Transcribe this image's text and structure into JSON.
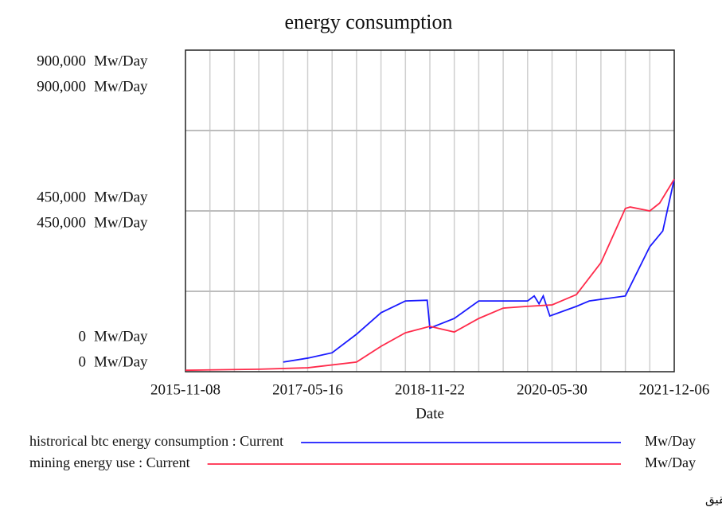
{
  "chart_data": {
    "type": "line",
    "title": "energy consumption",
    "x_label": "Date",
    "unit": "Mw/Day",
    "xlim": [
      "2015-11-08",
      "2021-12-06"
    ],
    "xticks": [
      "2015-11-08",
      "2017-05-16",
      "2018-11-22",
      "2020-05-30",
      "2021-12-06"
    ],
    "xgrid_count": 20,
    "ylim": [
      0,
      900000
    ],
    "yticks": [
      {
        "value": 0,
        "label": "0"
      },
      {
        "value": 450000,
        "label": "450,000"
      },
      {
        "value": 900000,
        "label": "900,000"
      }
    ],
    "y2lim": [
      0,
      900000
    ],
    "y2ticks": [
      {
        "value": 0,
        "label": "0"
      },
      {
        "value": 450000,
        "label": "450,000"
      },
      {
        "value": 900000,
        "label": "900,000"
      }
    ],
    "ygrid": [
      225000,
      450000,
      675000
    ],
    "series": [
      {
        "name": "histrorical btc energy consumption : Current",
        "color": "#1a1aff",
        "x": [
          "2017-01-25",
          "2017-05-16",
          "2017-09-04",
          "2017-12-24",
          "2018-04-14",
          "2018-08-03",
          "2018-11-10",
          "2018-11-22",
          "2019-03-13",
          "2019-07-02",
          "2020-02-09",
          "2020-03-10",
          "2020-04-01",
          "2020-04-20",
          "2020-05-20",
          "2020-09-18",
          "2020-11-15",
          "2021-04-28",
          "2021-08-17",
          "2021-10-15",
          "2021-12-06"
        ],
        "values": [
          27000,
          38000,
          53000,
          105000,
          165000,
          198000,
          200000,
          122000,
          149000,
          198000,
          198000,
          212000,
          190000,
          212000,
          156000,
          183000,
          198000,
          212000,
          350000,
          394000,
          539000
        ]
      },
      {
        "name": "mining energy use : Current",
        "color": "#ff2a4a",
        "axis": "y2",
        "x": [
          "2015-11-08",
          "2016-10-06",
          "2017-05-16",
          "2017-12-24",
          "2018-04-14",
          "2018-08-03",
          "2018-11-22",
          "2019-03-13",
          "2019-07-02",
          "2019-10-21",
          "2020-02-09",
          "2020-05-30",
          "2020-09-18",
          "2021-01-07",
          "2021-04-28",
          "2021-05-20",
          "2021-08-17",
          "2021-10-01",
          "2021-12-06"
        ],
        "values": [
          4000,
          7000,
          11000,
          27000,
          71000,
          109000,
          127000,
          111000,
          149000,
          178000,
          183000,
          187000,
          216000,
          305000,
          457000,
          461000,
          450000,
          472000,
          539000
        ]
      }
    ],
    "source": "مأخذ: یافته‌های تحقیق"
  }
}
